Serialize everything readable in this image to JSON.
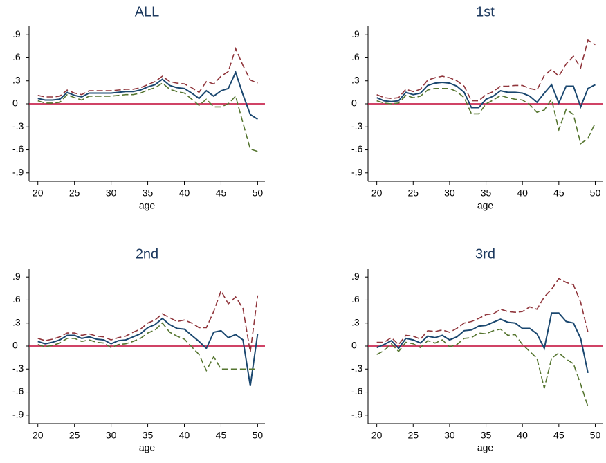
{
  "chart_data": [
    {
      "type": "line",
      "title": "ALL",
      "xlabel": "age",
      "x": [
        20,
        21,
        22,
        23,
        24,
        25,
        26,
        27,
        28,
        29,
        30,
        31,
        32,
        33,
        34,
        35,
        36,
        37,
        38,
        39,
        40,
        41,
        42,
        43,
        44,
        45,
        46,
        47,
        48,
        49,
        50
      ],
      "series": [
        {
          "color": "#1a476f",
          "style": "solid",
          "values": [
            0.07,
            0.05,
            0.05,
            0.06,
            0.15,
            0.11,
            0.09,
            0.14,
            0.14,
            0.14,
            0.14,
            0.15,
            0.16,
            0.16,
            0.18,
            0.22,
            0.25,
            0.32,
            0.24,
            0.21,
            0.2,
            0.14,
            0.07,
            0.17,
            0.1,
            0.17,
            0.2,
            0.41,
            0.12,
            -0.14,
            -0.2
          ]
        },
        {
          "color": "#90353b",
          "style": "dashed",
          "values": [
            0.11,
            0.09,
            0.09,
            0.1,
            0.18,
            0.14,
            0.12,
            0.17,
            0.17,
            0.17,
            0.17,
            0.18,
            0.19,
            0.19,
            0.21,
            0.25,
            0.29,
            0.36,
            0.29,
            0.27,
            0.26,
            0.21,
            0.15,
            0.29,
            0.26,
            0.36,
            0.42,
            0.72,
            0.5,
            0.31,
            0.27
          ]
        },
        {
          "color": "#55752f",
          "style": "dashed",
          "values": [
            0.04,
            0.01,
            0.01,
            0.02,
            0.12,
            0.08,
            0.05,
            0.1,
            0.1,
            0.1,
            0.1,
            0.11,
            0.12,
            0.12,
            0.14,
            0.18,
            0.21,
            0.27,
            0.19,
            0.16,
            0.14,
            0.06,
            -0.02,
            0.06,
            -0.04,
            -0.04,
            0,
            0.1,
            -0.25,
            -0.59,
            -0.62
          ]
        }
      ],
      "hline": 0,
      "hline_color": "#c10534",
      "xlim": [
        18.8,
        51
      ],
      "ylim": [
        -1.01,
        1.01
      ],
      "xticks": [
        20,
        25,
        30,
        35,
        40,
        45,
        50
      ],
      "yticks": [
        {
          "value": 0.9,
          "label": ".9"
        },
        {
          "value": 0.6,
          "label": ".6"
        },
        {
          "value": 0.3,
          "label": ".3"
        },
        0,
        {
          "value": -0.3,
          "label": "-.3"
        },
        {
          "value": -0.6,
          "label": "-.6"
        },
        {
          "value": -0.9,
          "label": "-.9"
        }
      ]
    },
    {
      "type": "line",
      "title": "1st",
      "xlabel": "age",
      "x": [
        20,
        21,
        22,
        23,
        24,
        25,
        26,
        27,
        28,
        29,
        30,
        31,
        32,
        33,
        34,
        35,
        36,
        37,
        38,
        39,
        40,
        41,
        42,
        43,
        44,
        45,
        46,
        47,
        48,
        49,
        50
      ],
      "series": [
        {
          "color": "#1a476f",
          "style": "solid",
          "values": [
            0.08,
            0.04,
            0.03,
            0.04,
            0.15,
            0.12,
            0.14,
            0.24,
            0.27,
            0.28,
            0.27,
            0.23,
            0.15,
            -0.05,
            -0.05,
            0.06,
            0.1,
            0.17,
            0.15,
            0.15,
            0.14,
            0.1,
            0.02,
            0.14,
            0.25,
            0.01,
            0.23,
            0.23,
            -0.04,
            0.2,
            0.25
          ]
        },
        {
          "color": "#90353b",
          "style": "dashed",
          "values": [
            0.12,
            0.08,
            0.07,
            0.08,
            0.19,
            0.16,
            0.19,
            0.31,
            0.34,
            0.36,
            0.34,
            0.3,
            0.23,
            0.04,
            0.04,
            0.12,
            0.16,
            0.23,
            0.23,
            0.24,
            0.24,
            0.2,
            0.18,
            0.37,
            0.45,
            0.36,
            0.52,
            0.62,
            0.47,
            0.83,
            0.77
          ]
        },
        {
          "color": "#55752f",
          "style": "dashed",
          "values": [
            0.04,
            0.01,
            0,
            0.01,
            0.11,
            0.08,
            0.1,
            0.18,
            0.2,
            0.2,
            0.2,
            0.16,
            0.08,
            -0.13,
            -0.13,
            0,
            0.05,
            0.11,
            0.08,
            0.06,
            0.05,
            -0.01,
            -0.11,
            -0.08,
            0.06,
            -0.34,
            -0.07,
            -0.14,
            -0.52,
            -0.45,
            -0.25
          ]
        }
      ],
      "hline": 0,
      "hline_color": "#c10534",
      "xlim": [
        18.8,
        51
      ],
      "ylim": [
        -1.01,
        1.01
      ],
      "xticks": [
        20,
        25,
        30,
        35,
        40,
        45,
        50
      ],
      "yticks": [
        {
          "value": 0.9,
          "label": ".9"
        },
        {
          "value": 0.6,
          "label": ".6"
        },
        {
          "value": 0.3,
          "label": ".3"
        },
        0,
        {
          "value": -0.3,
          "label": "-.3"
        },
        {
          "value": -0.6,
          "label": "-.6"
        },
        {
          "value": -0.9,
          "label": "-.9"
        }
      ]
    },
    {
      "type": "line",
      "title": "2nd",
      "xlabel": "age",
      "x": [
        20,
        21,
        22,
        23,
        24,
        25,
        26,
        27,
        28,
        29,
        30,
        31,
        32,
        33,
        34,
        35,
        36,
        37,
        38,
        39,
        40,
        41,
        42,
        43,
        44,
        45,
        46,
        47,
        48,
        49,
        50
      ],
      "series": [
        {
          "color": "#1a476f",
          "style": "solid",
          "values": [
            0.06,
            0.03,
            0.05,
            0.08,
            0.14,
            0.14,
            0.1,
            0.12,
            0.09,
            0.08,
            0.03,
            0.07,
            0.08,
            0.12,
            0.16,
            0.24,
            0.28,
            0.36,
            0.28,
            0.23,
            0.22,
            0.14,
            0.06,
            -0.03,
            0.18,
            0.2,
            0.11,
            0.15,
            0.08,
            -0.52,
            0.16
          ]
        },
        {
          "color": "#90353b",
          "style": "dashed",
          "values": [
            0.1,
            0.07,
            0.09,
            0.12,
            0.17,
            0.17,
            0.14,
            0.16,
            0.13,
            0.12,
            0.08,
            0.11,
            0.13,
            0.18,
            0.22,
            0.3,
            0.34,
            0.42,
            0.37,
            0.32,
            0.34,
            0.3,
            0.24,
            0.24,
            0.45,
            0.72,
            0.55,
            0.64,
            0.49,
            -0.08,
            0.66
          ]
        },
        {
          "color": "#55752f",
          "style": "dashed",
          "values": [
            0.02,
            -0.01,
            0.01,
            0.04,
            0.1,
            0.1,
            0.06,
            0.08,
            0.05,
            0.04,
            -0.02,
            0.02,
            0.03,
            0.06,
            0.1,
            0.17,
            0.21,
            0.3,
            0.18,
            0.13,
            0.09,
            -0.01,
            -0.11,
            -0.32,
            -0.14,
            -0.3,
            -0.3,
            -0.3,
            -0.3,
            -0.3,
            -0.3
          ]
        }
      ],
      "hline": 0,
      "hline_color": "#c10534",
      "xlim": [
        18.8,
        51
      ],
      "ylim": [
        -1.01,
        1.01
      ],
      "xticks": [
        20,
        25,
        30,
        35,
        40,
        45,
        50
      ],
      "yticks": [
        {
          "value": 0.9,
          "label": ".9"
        },
        {
          "value": 0.6,
          "label": ".6"
        },
        {
          "value": 0.3,
          "label": ".3"
        },
        0,
        {
          "value": -0.3,
          "label": "-.3"
        },
        {
          "value": -0.6,
          "label": "-.6"
        },
        {
          "value": -0.9,
          "label": "-.9"
        }
      ]
    },
    {
      "type": "line",
      "title": "3rd",
      "xlabel": "age",
      "x": [
        20,
        21,
        22,
        23,
        24,
        25,
        26,
        27,
        28,
        29,
        30,
        31,
        32,
        33,
        34,
        35,
        36,
        37,
        38,
        39,
        40,
        41,
        42,
        43,
        44,
        45,
        46,
        47,
        48,
        49
      ],
      "series": [
        {
          "color": "#1a476f",
          "style": "solid",
          "values": [
            -0.02,
            0.02,
            0.07,
            -0.03,
            0.1,
            0.08,
            0.04,
            0.13,
            0.11,
            0.14,
            0.08,
            0.12,
            0.2,
            0.21,
            0.26,
            0.27,
            0.31,
            0.35,
            0.31,
            0.3,
            0.23,
            0.23,
            0.16,
            -0.03,
            0.43,
            0.43,
            0.32,
            0.3,
            0.1,
            -0.35
          ]
        },
        {
          "color": "#90353b",
          "style": "dashed",
          "values": [
            0.05,
            0.05,
            0.11,
            0.02,
            0.14,
            0.13,
            0.09,
            0.2,
            0.19,
            0.21,
            0.18,
            0.23,
            0.3,
            0.32,
            0.36,
            0.41,
            0.42,
            0.48,
            0.45,
            0.44,
            0.45,
            0.51,
            0.48,
            0.64,
            0.74,
            0.88,
            0.83,
            0.8,
            0.57,
            0.18
          ]
        },
        {
          "color": "#55752f",
          "style": "dashed",
          "values": [
            -0.11,
            -0.06,
            0.03,
            -0.07,
            0.05,
            0.03,
            -0.02,
            0.07,
            0.04,
            0.08,
            -0.01,
            0.02,
            0.1,
            0.11,
            0.17,
            0.16,
            0.2,
            0.22,
            0.14,
            0.15,
            0.02,
            -0.07,
            -0.16,
            -0.55,
            -0.16,
            -0.09,
            -0.17,
            -0.23,
            -0.5,
            -0.79
          ]
        }
      ],
      "hline": 0,
      "hline_color": "#c10534",
      "xlim": [
        18.8,
        51
      ],
      "ylim": [
        -1.01,
        1.01
      ],
      "xticks": [
        20,
        25,
        30,
        35,
        40,
        45,
        50
      ],
      "yticks": [
        {
          "value": 0.9,
          "label": ".9"
        },
        {
          "value": 0.6,
          "label": ".6"
        },
        {
          "value": 0.3,
          "label": ".3"
        },
        0,
        {
          "value": -0.3,
          "label": "-.3"
        },
        {
          "value": -0.6,
          "label": "-.6"
        },
        {
          "value": -0.9,
          "label": "-.9"
        }
      ]
    }
  ]
}
